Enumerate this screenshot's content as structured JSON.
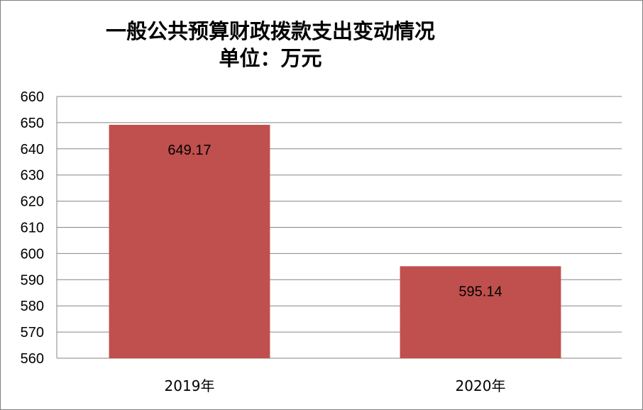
{
  "chart_data": {
    "type": "bar",
    "title": "一般公共预算财政拨款支出变动情况",
    "subtitle": "单位：万元",
    "categories": [
      "2019年",
      "2020年"
    ],
    "values": [
      649.17,
      595.14
    ],
    "data_labels": [
      "649.17",
      "595.14"
    ],
    "ylim": [
      560,
      660
    ],
    "yticks": [
      560,
      570,
      580,
      590,
      600,
      610,
      620,
      630,
      640,
      650,
      660
    ],
    "grid": true,
    "legend": "none",
    "bar_color": "#c0504d",
    "grid_color": "#868686"
  }
}
